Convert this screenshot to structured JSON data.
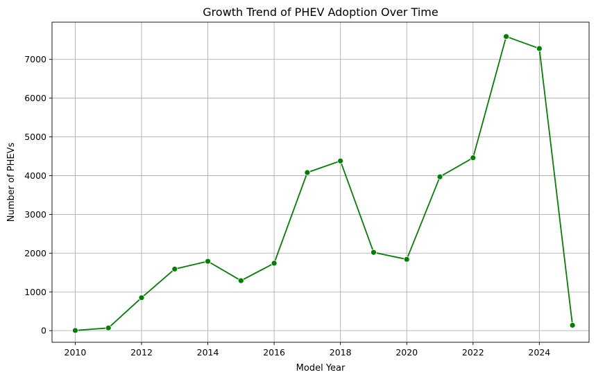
{
  "chart_data": {
    "type": "line",
    "title": "Growth Trend of PHEV Adoption Over Time",
    "xlabel": "Model Year",
    "ylabel": "Number of PHEVs",
    "xlim": [
      2009.3,
      2025.5
    ],
    "ylim": [
      -300,
      7960
    ],
    "x_ticks": [
      2010,
      2012,
      2014,
      2016,
      2018,
      2020,
      2022,
      2024
    ],
    "y_ticks": [
      0,
      1000,
      2000,
      3000,
      4000,
      5000,
      6000,
      7000
    ],
    "grid": true,
    "series": [
      {
        "color": "#008000",
        "marker": "circle",
        "x": [
          2010,
          2011,
          2012,
          2013,
          2014,
          2015,
          2016,
          2017,
          2018,
          2019,
          2020,
          2021,
          2022,
          2023,
          2024,
          2025
        ],
        "y": [
          5,
          70,
          850,
          1590,
          1790,
          1290,
          1740,
          4080,
          4380,
          2020,
          1840,
          3970,
          4460,
          7590,
          7280,
          140
        ]
      }
    ]
  }
}
